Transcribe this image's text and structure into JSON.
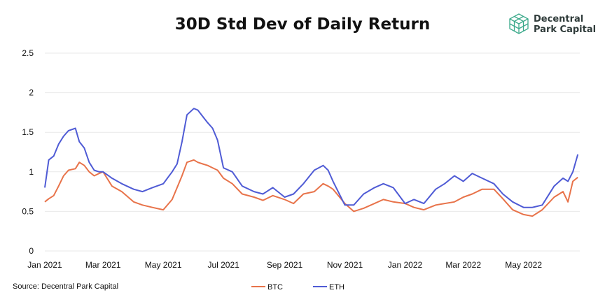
{
  "title": "30D Std Dev of Daily Return",
  "logo": {
    "line1": "Decentral",
    "line2": "Park Capital",
    "icon": "cube-icon"
  },
  "source": "Source: Decentral Park Capital",
  "colors": {
    "btc": "#e8734a",
    "eth": "#4f5bd5",
    "grid": "#e9e9e9",
    "text": "#111111"
  },
  "chart_data": {
    "type": "line",
    "title": "30D Std Dev of Daily Return",
    "xlabel": "",
    "ylabel": "",
    "ylim": [
      0,
      2.5
    ],
    "yticks": [
      "0",
      "0.5",
      "1",
      "1.5",
      "2",
      "2.5"
    ],
    "xticks": [
      "Jan 2021",
      "Mar 2021",
      "May 2021",
      "Jul 2021",
      "Sep 2021",
      "Nov 2021",
      "Jan 2022",
      "Mar 2022",
      "May 2022"
    ],
    "grid": "horizontal",
    "legend_position": "bottom",
    "x": [
      "2021-01-01",
      "2021-01-05",
      "2021-01-10",
      "2021-01-15",
      "2021-01-20",
      "2021-01-25",
      "2021-02-01",
      "2021-02-05",
      "2021-02-10",
      "2021-02-15",
      "2021-02-20",
      "2021-02-25",
      "2021-03-01",
      "2021-03-10",
      "2021-03-20",
      "2021-04-01",
      "2021-04-10",
      "2021-04-20",
      "2021-05-01",
      "2021-05-10",
      "2021-05-15",
      "2021-05-20",
      "2021-05-25",
      "2021-06-01",
      "2021-06-05",
      "2021-06-10",
      "2021-06-15",
      "2021-06-20",
      "2021-06-25",
      "2021-07-01",
      "2021-07-10",
      "2021-07-20",
      "2021-08-01",
      "2021-08-10",
      "2021-08-20",
      "2021-09-01",
      "2021-09-10",
      "2021-09-20",
      "2021-10-01",
      "2021-10-10",
      "2021-10-15",
      "2021-10-20",
      "2021-11-01",
      "2021-11-10",
      "2021-11-20",
      "2021-12-01",
      "2021-12-10",
      "2021-12-20",
      "2022-01-01",
      "2022-01-10",
      "2022-01-20",
      "2022-02-01",
      "2022-02-10",
      "2022-02-20",
      "2022-03-01",
      "2022-03-10",
      "2022-03-20",
      "2022-04-01",
      "2022-04-10",
      "2022-04-20",
      "2022-05-01",
      "2022-05-10",
      "2022-05-20",
      "2022-06-01",
      "2022-06-10",
      "2022-06-15",
      "2022-06-20",
      "2022-06-25"
    ],
    "series": [
      {
        "name": "BTC",
        "color": "#e8734a",
        "values": [
          0.62,
          0.66,
          0.7,
          0.82,
          0.95,
          1.02,
          1.04,
          1.12,
          1.08,
          1.0,
          0.95,
          0.98,
          1.0,
          0.82,
          0.75,
          0.62,
          0.58,
          0.55,
          0.52,
          0.65,
          0.8,
          0.95,
          1.12,
          1.15,
          1.12,
          1.1,
          1.08,
          1.05,
          1.02,
          0.92,
          0.85,
          0.72,
          0.68,
          0.64,
          0.7,
          0.65,
          0.6,
          0.72,
          0.75,
          0.85,
          0.82,
          0.78,
          0.6,
          0.5,
          0.54,
          0.6,
          0.65,
          0.62,
          0.6,
          0.55,
          0.52,
          0.58,
          0.6,
          0.62,
          0.68,
          0.72,
          0.78,
          0.78,
          0.66,
          0.52,
          0.46,
          0.44,
          0.52,
          0.68,
          0.75,
          0.62,
          0.88,
          0.93
        ]
      },
      {
        "name": "ETH",
        "color": "#4f5bd5",
        "values": [
          0.8,
          1.15,
          1.2,
          1.35,
          1.45,
          1.52,
          1.55,
          1.38,
          1.3,
          1.12,
          1.02,
          1.0,
          1.0,
          0.92,
          0.85,
          0.78,
          0.75,
          0.8,
          0.85,
          1.0,
          1.1,
          1.38,
          1.72,
          1.8,
          1.78,
          1.7,
          1.62,
          1.55,
          1.4,
          1.05,
          1.0,
          0.82,
          0.75,
          0.72,
          0.8,
          0.68,
          0.72,
          0.85,
          1.02,
          1.08,
          1.02,
          0.88,
          0.58,
          0.58,
          0.72,
          0.8,
          0.85,
          0.8,
          0.6,
          0.65,
          0.6,
          0.78,
          0.85,
          0.95,
          0.88,
          0.98,
          0.92,
          0.85,
          0.72,
          0.62,
          0.55,
          0.55,
          0.58,
          0.82,
          0.92,
          0.88,
          1.0,
          1.22
        ]
      }
    ]
  }
}
